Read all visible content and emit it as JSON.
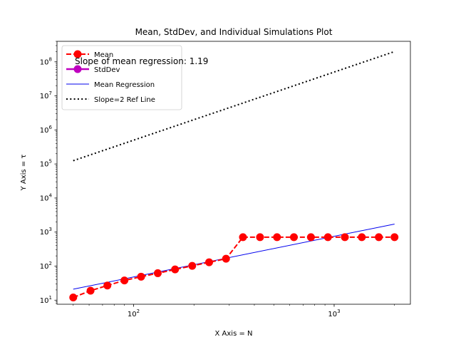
{
  "chart_data": {
    "type": "line",
    "title": "Mean, StdDev, and Individual Simulations Plot",
    "xlabel": "X Axis = N",
    "ylabel": "Y Axis = τ",
    "xscale": "log",
    "yscale": "log",
    "xlim": [
      41.5,
      2400
    ],
    "ylim": [
      7.6,
      400000000
    ],
    "x_ticks": [
      {
        "value": 100,
        "base": "10",
        "exp": "2"
      },
      {
        "value": 1000,
        "base": "10",
        "exp": "3"
      }
    ],
    "y_ticks": [
      {
        "value": 10,
        "base": "10",
        "exp": "1"
      },
      {
        "value": 100,
        "base": "10",
        "exp": "2"
      },
      {
        "value": 1000,
        "base": "10",
        "exp": "3"
      },
      {
        "value": 10000,
        "base": "10",
        "exp": "4"
      },
      {
        "value": 100000,
        "base": "10",
        "exp": "5"
      },
      {
        "value": 1000000,
        "base": "10",
        "exp": "6"
      },
      {
        "value": 10000000,
        "base": "10",
        "exp": "7"
      },
      {
        "value": 100000000,
        "base": "10",
        "exp": "8"
      }
    ],
    "annotation": "Slope of mean regression: 1.19",
    "legend_position": "upper-left",
    "grid": false,
    "series": [
      {
        "name": "Mean",
        "style": "dashed-markers",
        "color": "#ff0000",
        "x": [
          50,
          61,
          74,
          90,
          109,
          132,
          161,
          196,
          238,
          289,
          351,
          427,
          519,
          630,
          766,
          931,
          1131,
          1374,
          1670,
          2000
        ],
        "y": [
          12,
          19,
          27,
          38,
          49,
          62,
          80,
          102,
          130,
          165,
          710,
          710,
          710,
          710,
          710,
          710,
          710,
          710,
          710,
          710
        ]
      },
      {
        "name": "StdDev",
        "style": "solid-markers",
        "color": "#bf00bf",
        "x": [],
        "y": []
      },
      {
        "name": "Mean Regression",
        "style": "solid",
        "color": "#0000ee",
        "x": [
          50,
          2000
        ],
        "y": [
          21,
          1720
        ]
      },
      {
        "name": "Slope=2 Ref Line",
        "style": "dotted",
        "color": "#000000",
        "x": [
          50,
          2000
        ],
        "y": [
          125000,
          200000000
        ]
      }
    ]
  }
}
